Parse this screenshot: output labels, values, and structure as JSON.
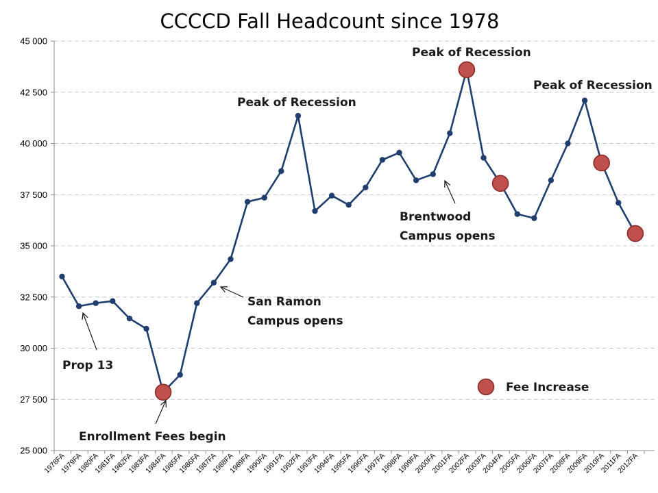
{
  "chart_data": {
    "type": "line",
    "title": "CCCCD Fall Headcount since 1978",
    "xlabel": "",
    "ylabel": "",
    "ylim": [
      25000,
      45000
    ],
    "yticks": [
      25000,
      27500,
      30000,
      32500,
      35000,
      37500,
      40000,
      42500,
      45000
    ],
    "ytick_labels": [
      "25 000",
      "27 500",
      "30 000",
      "32 500",
      "35 000",
      "37 500",
      "40 000",
      "42 500",
      "45 000"
    ],
    "grid": "horizontal dashed",
    "line_color": "#1f3d6e",
    "marker_color": "#1f3d6e",
    "fee_marker_color": "#c0504d",
    "categories": [
      "1978FA",
      "1979FA",
      "1980FA",
      "1981FA",
      "1982FA",
      "1983FA",
      "1984FA",
      "1985FA",
      "1986FA",
      "1987FA",
      "1988FA",
      "1989FA",
      "1990FA",
      "1991FA",
      "1992FA",
      "1993FA",
      "1994FA",
      "1995FA",
      "1996FA",
      "1997FA",
      "1998FA",
      "1999FA",
      "2000FA",
      "2001FA",
      "2002FA",
      "2003FA",
      "2004FA",
      "2005FA",
      "2006FA",
      "2007FA",
      "2008FA",
      "2009FA",
      "2010FA",
      "2011FA",
      "2012FA"
    ],
    "series": [
      {
        "values": [
          33500,
          32050,
          32200,
          32300,
          31450,
          30950,
          27850,
          28700,
          32200,
          33200,
          34350,
          37150,
          37350,
          38650,
          41350,
          36700,
          37450,
          37000,
          37850,
          39200,
          39550,
          38200,
          38500,
          40500,
          43600,
          39300,
          38050,
          36550,
          36350,
          38200,
          40000,
          42100,
          39050,
          37100,
          35600
        ]
      }
    ],
    "fee_increase_indices": [
      6,
      24,
      26,
      32,
      34
    ],
    "legend": {
      "label": "Fee Increase",
      "position": "bottom-right"
    },
    "annotations": [
      {
        "lines": [
          "Prop 13"
        ],
        "target": "1979FA"
      },
      {
        "lines": [
          "Enrollment Fees begin"
        ],
        "target": "1984FA"
      },
      {
        "lines": [
          "San Ramon",
          "Campus opens"
        ],
        "target": "1987FA"
      },
      {
        "lines": [
          "Peak of Recession"
        ],
        "target": "1992FA"
      },
      {
        "lines": [
          "Brentwood",
          "Campus opens"
        ],
        "target": "2000FA"
      },
      {
        "lines": [
          "Peak of Recession"
        ],
        "target": "2002FA"
      },
      {
        "lines": [
          "Peak of Recession"
        ],
        "target": "2009FA"
      }
    ]
  }
}
